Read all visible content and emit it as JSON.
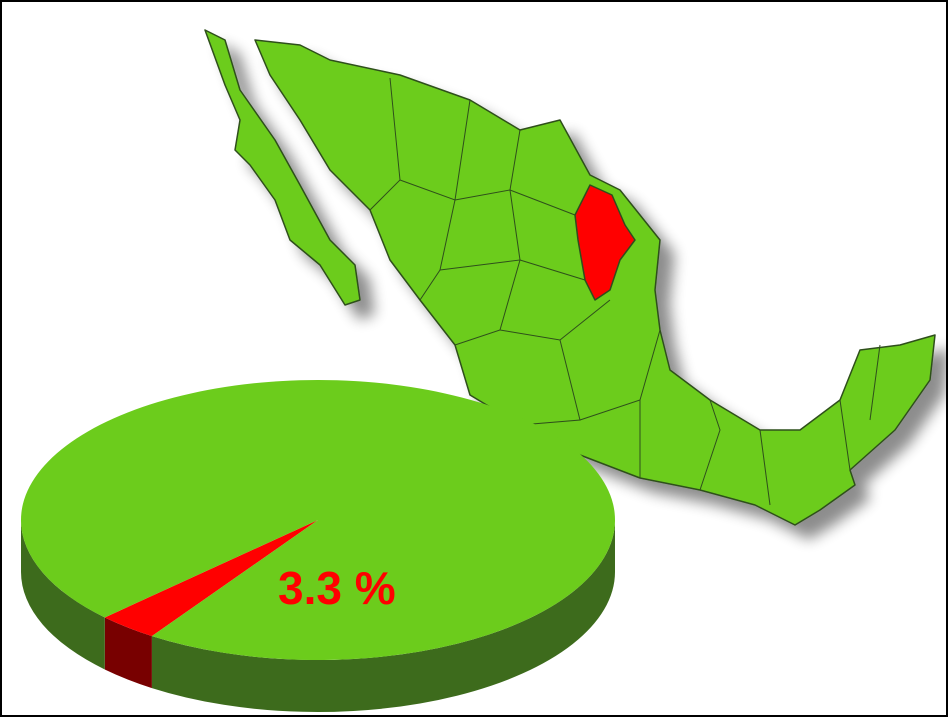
{
  "chart_data": {
    "type": "pie",
    "values": [
      3.3,
      96.7
    ],
    "value_labels": [
      "3.3 %",
      null
    ],
    "colors": [
      "#ff0000",
      "#6ccc1c"
    ],
    "side_colors": [
      "#780000",
      "#3d6b1c"
    ]
  }
}
